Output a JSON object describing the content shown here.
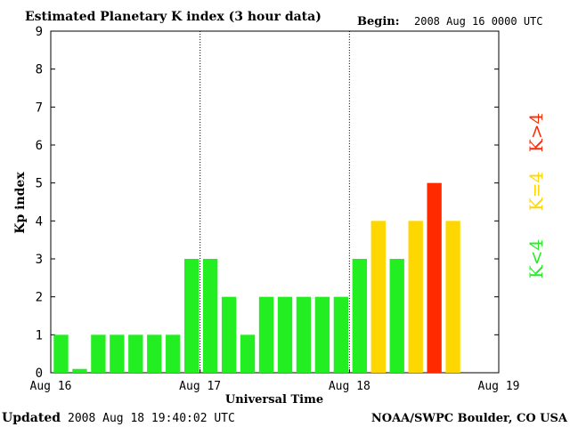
{
  "header": {
    "title": "Estimated Planetary K index (3 hour data)",
    "begin_label": "Begin:",
    "begin_value": "2008 Aug 16 0000 UTC"
  },
  "footer": {
    "updated_label": "Updated",
    "updated_value": "2008 Aug 18 19:40:02 UTC",
    "source": "NOAA/SWPC Boulder, CO USA"
  },
  "legend": {
    "low": "K<4",
    "mid": "K=4",
    "high": "K>4"
  },
  "colors": {
    "low": "#22ee22",
    "mid": "#ffd700",
    "high": "#ff2a00",
    "axis": "#000000",
    "background": "#ffffff"
  },
  "chart_data": {
    "type": "bar",
    "title": "Estimated Planetary K index (3 hour data)",
    "xlabel": "Universal Time",
    "ylabel": "Kp index",
    "ylim": [
      0,
      9
    ],
    "yticks": [
      "0",
      "1",
      "2",
      "3",
      "4",
      "5",
      "6",
      "7",
      "8",
      "9"
    ],
    "xticks": [
      "Aug 16",
      "Aug 17",
      "Aug 18",
      "Aug 19"
    ],
    "bar_interval_hours": 3,
    "values": [
      1,
      0.1,
      1,
      1,
      1,
      1,
      1,
      3,
      3,
      2,
      1,
      2,
      2,
      2,
      2,
      2,
      3,
      4,
      3,
      4,
      5,
      4
    ],
    "grid": "dotted vertical lines at day boundaries",
    "legend_placement": "right, vertical"
  }
}
